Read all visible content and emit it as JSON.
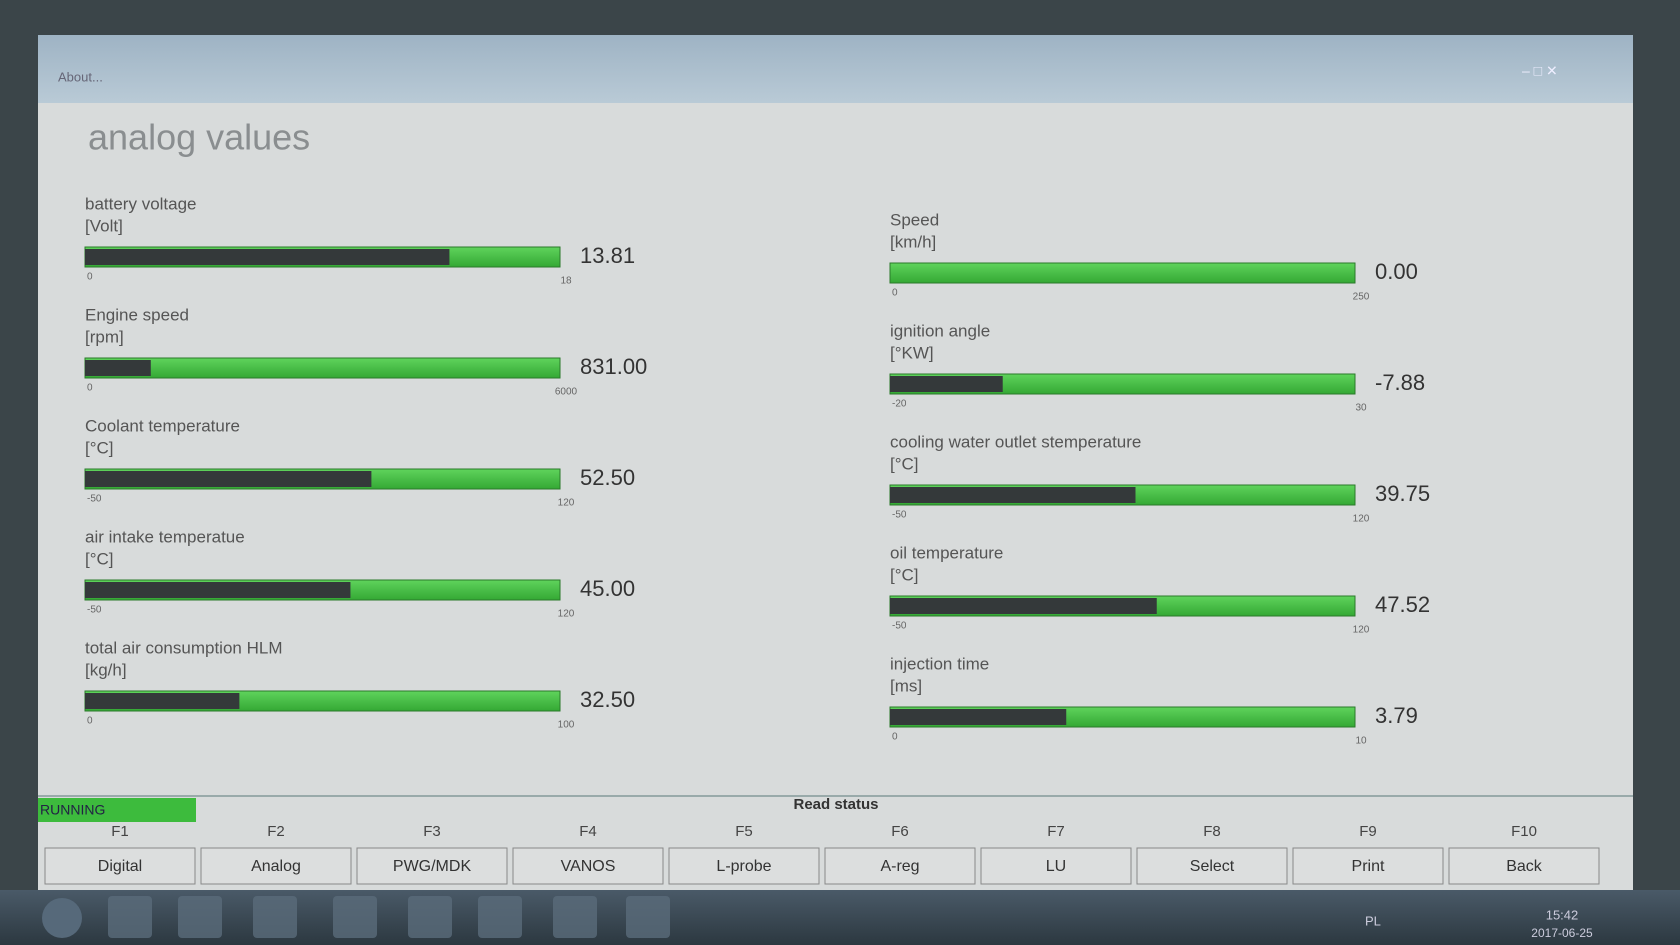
{
  "window": {
    "menu": "About...",
    "title": "analog values"
  },
  "gauges": [
    {
      "label": "battery voltage",
      "unit": "[Volt]",
      "min": 0,
      "max": 18,
      "value": 13.81,
      "value_label": "13.81"
    },
    {
      "label": "Engine speed",
      "unit": "[rpm]",
      "min": 0,
      "max": 6000,
      "value": 831,
      "value_label": "831.00"
    },
    {
      "label": "Coolant temperature",
      "unit": "[°C]",
      "min": -50,
      "max": 120,
      "value": 52.5,
      "value_label": "52.50"
    },
    {
      "label": "air intake temperatue",
      "unit": "[°C]",
      "min": -50,
      "max": 120,
      "value": 45,
      "value_label": "45.00"
    },
    {
      "label": "total air consumption HLM",
      "unit": "[kg/h]",
      "min": 0,
      "max": 100,
      "value": 32.5,
      "value_label": "32.50"
    },
    {
      "label": "Speed",
      "unit": "[km/h]",
      "min": 0,
      "max": 250,
      "value": 0,
      "value_label": "0.00"
    },
    {
      "label": "ignition angle",
      "unit": "[°KW]",
      "min": -20,
      "max": 30,
      "value": -7.88,
      "value_label": "-7.88"
    },
    {
      "label": "cooling water outlet stemperature",
      "unit": "[°C]",
      "min": -50,
      "max": 120,
      "value": 39.75,
      "value_label": "39.75"
    },
    {
      "label": "oil temperature",
      "unit": "[°C]",
      "min": -50,
      "max": 120,
      "value": 47.52,
      "value_label": "47.52"
    },
    {
      "label": "injection time",
      "unit": "[ms]",
      "min": 0,
      "max": 10,
      "value": 3.79,
      "value_label": "3.79"
    }
  ],
  "status": {
    "state": "RUNNING",
    "message": "Read status"
  },
  "function_keys": [
    {
      "key": "F1",
      "label": "Digital"
    },
    {
      "key": "F2",
      "label": "Analog"
    },
    {
      "key": "F3",
      "label": "PWG/MDK"
    },
    {
      "key": "F4",
      "label": "VANOS"
    },
    {
      "key": "F5",
      "label": "L-probe"
    },
    {
      "key": "F6",
      "label": "A-reg"
    },
    {
      "key": "F7",
      "label": "LU"
    },
    {
      "key": "F8",
      "label": "Select"
    },
    {
      "key": "F9",
      "label": "Print"
    },
    {
      "key": "F10",
      "label": "Back"
    }
  ],
  "taskbar": {
    "language": "PL",
    "time": "15:42",
    "date": "2017-06-25"
  }
}
